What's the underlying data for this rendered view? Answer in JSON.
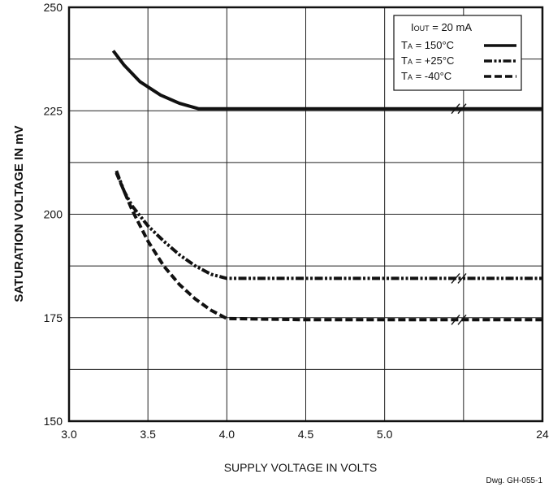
{
  "chart_data": {
    "type": "line",
    "xlabel": "SUPPLY VOLTAGE IN VOLTS",
    "ylabel": "SATURATION VOLTAGE IN mV",
    "x_ticks": [
      "3.0",
      "3.5",
      "4.0",
      "4.5",
      "5.0",
      "24"
    ],
    "y_ticks": [
      "150",
      "175",
      "200",
      "225",
      "250"
    ],
    "x_tick_values": [
      3.0,
      3.5,
      4.0,
      4.5,
      5.0,
      6.0
    ],
    "y_tick_values": [
      150,
      175,
      200,
      225,
      250
    ],
    "xlim": [
      3.0,
      6.0
    ],
    "ylim": [
      150,
      250
    ],
    "x_axis_note": "broken axis between 5.0 and 24",
    "grid": true,
    "legend_position": "top-right",
    "legend_header": {
      "prefix": "I",
      "sub": "OUT",
      "rest": " = 20 mA"
    },
    "series": [
      {
        "name": "TA = 150°C",
        "label_prefix": "T",
        "label_sub": "A",
        "label_rest": " = 150°C",
        "style": "solid",
        "x": [
          3.28,
          3.35,
          3.45,
          3.58,
          3.7,
          3.82,
          4.0,
          4.5,
          5.0,
          5.5,
          6.0
        ],
        "y": [
          239.5,
          236,
          232,
          228.8,
          226.8,
          225.5,
          225.5,
          225.5,
          225.5,
          225.5,
          225.5
        ]
      },
      {
        "name": "TA = +25°C",
        "label_prefix": "T",
        "label_sub": "A",
        "label_rest": " = +25°C",
        "style": "dash-dot-dot",
        "x": [
          3.3,
          3.35,
          3.4,
          3.5,
          3.6,
          3.7,
          3.8,
          3.9,
          4.0,
          4.5,
          5.0,
          5.5,
          6.0
        ],
        "y": [
          210.5,
          205.5,
          202,
          197.2,
          193.5,
          190.2,
          187.5,
          185.5,
          184.5,
          184.5,
          184.5,
          184.5,
          184.5
        ]
      },
      {
        "name": "TA = -40°C",
        "label_prefix": "T",
        "label_sub": "A",
        "label_rest": " = -40°C",
        "style": "dashed",
        "x": [
          3.3,
          3.4,
          3.5,
          3.6,
          3.7,
          3.8,
          3.9,
          4.0,
          4.5,
          5.0,
          5.5,
          6.0
        ],
        "y": [
          210,
          201,
          193.5,
          187.5,
          183,
          179.5,
          176.8,
          174.8,
          174.5,
          174.5,
          174.5,
          174.5
        ]
      }
    ]
  },
  "footer": {
    "drawing_number": "Dwg. GH-055-1"
  }
}
